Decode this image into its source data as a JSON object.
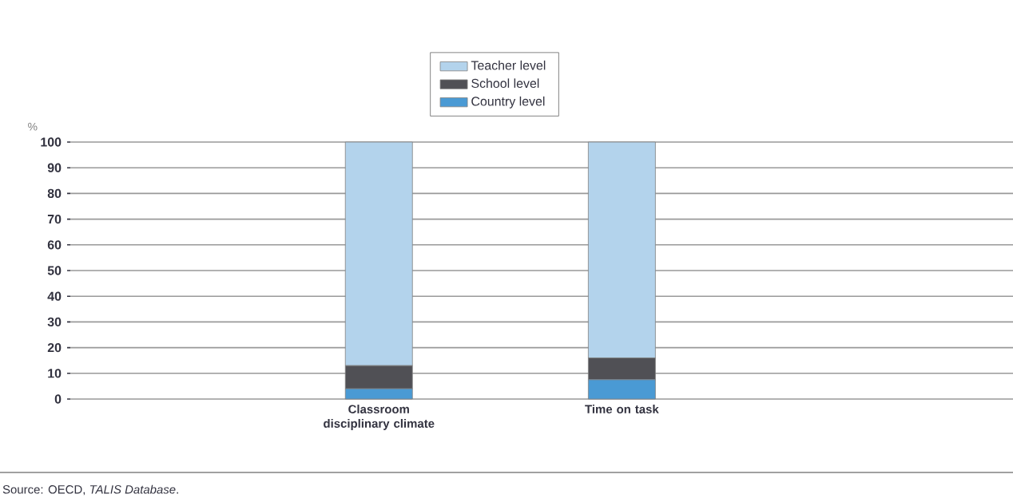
{
  "chart_data": {
    "type": "bar",
    "stacked": true,
    "ylabel": "%",
    "categories": [
      "Classroom disciplinary climate",
      "Time on task"
    ],
    "series": [
      {
        "name": "Country level",
        "color": "#4a9ad4",
        "values": [
          4,
          7.5
        ]
      },
      {
        "name": "School level",
        "color": "#505055",
        "values": [
          9,
          8.5
        ]
      },
      {
        "name": "Teacher level",
        "color": "#b3d3ec",
        "values": [
          87,
          84
        ]
      }
    ],
    "ylim": [
      0,
      100
    ],
    "yticks": [
      0,
      10,
      20,
      30,
      40,
      50,
      60,
      70,
      80,
      90,
      100
    ],
    "grid": "y",
    "legend": "top",
    "annotations": [
      "Source: OECD, *TALIS Database*."
    ]
  }
}
